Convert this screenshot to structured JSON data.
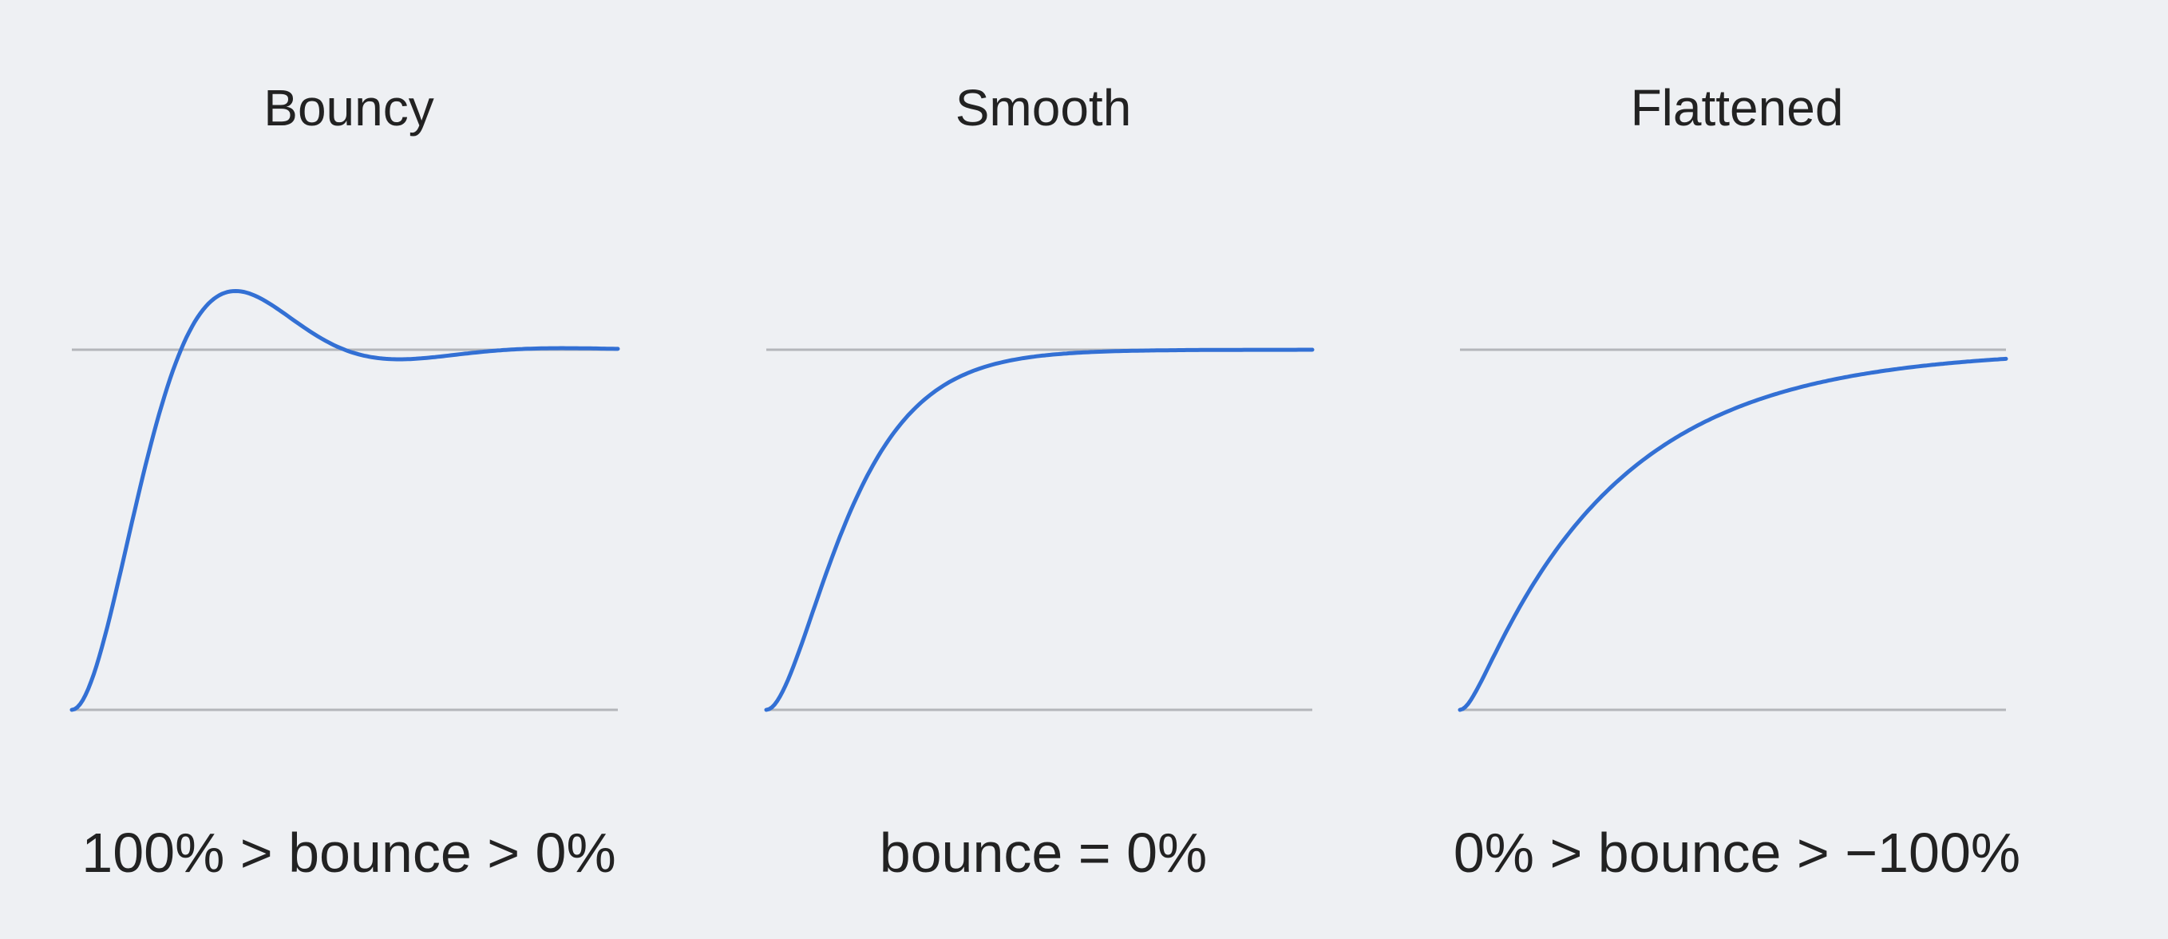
{
  "panels": [
    {
      "title": "Bouncy",
      "caption": "100% > bounce > 0%"
    },
    {
      "title": "Smooth",
      "caption": "bounce = 0%"
    },
    {
      "title": "Flattened",
      "caption": "0% > bounce > −100%"
    }
  ]
}
